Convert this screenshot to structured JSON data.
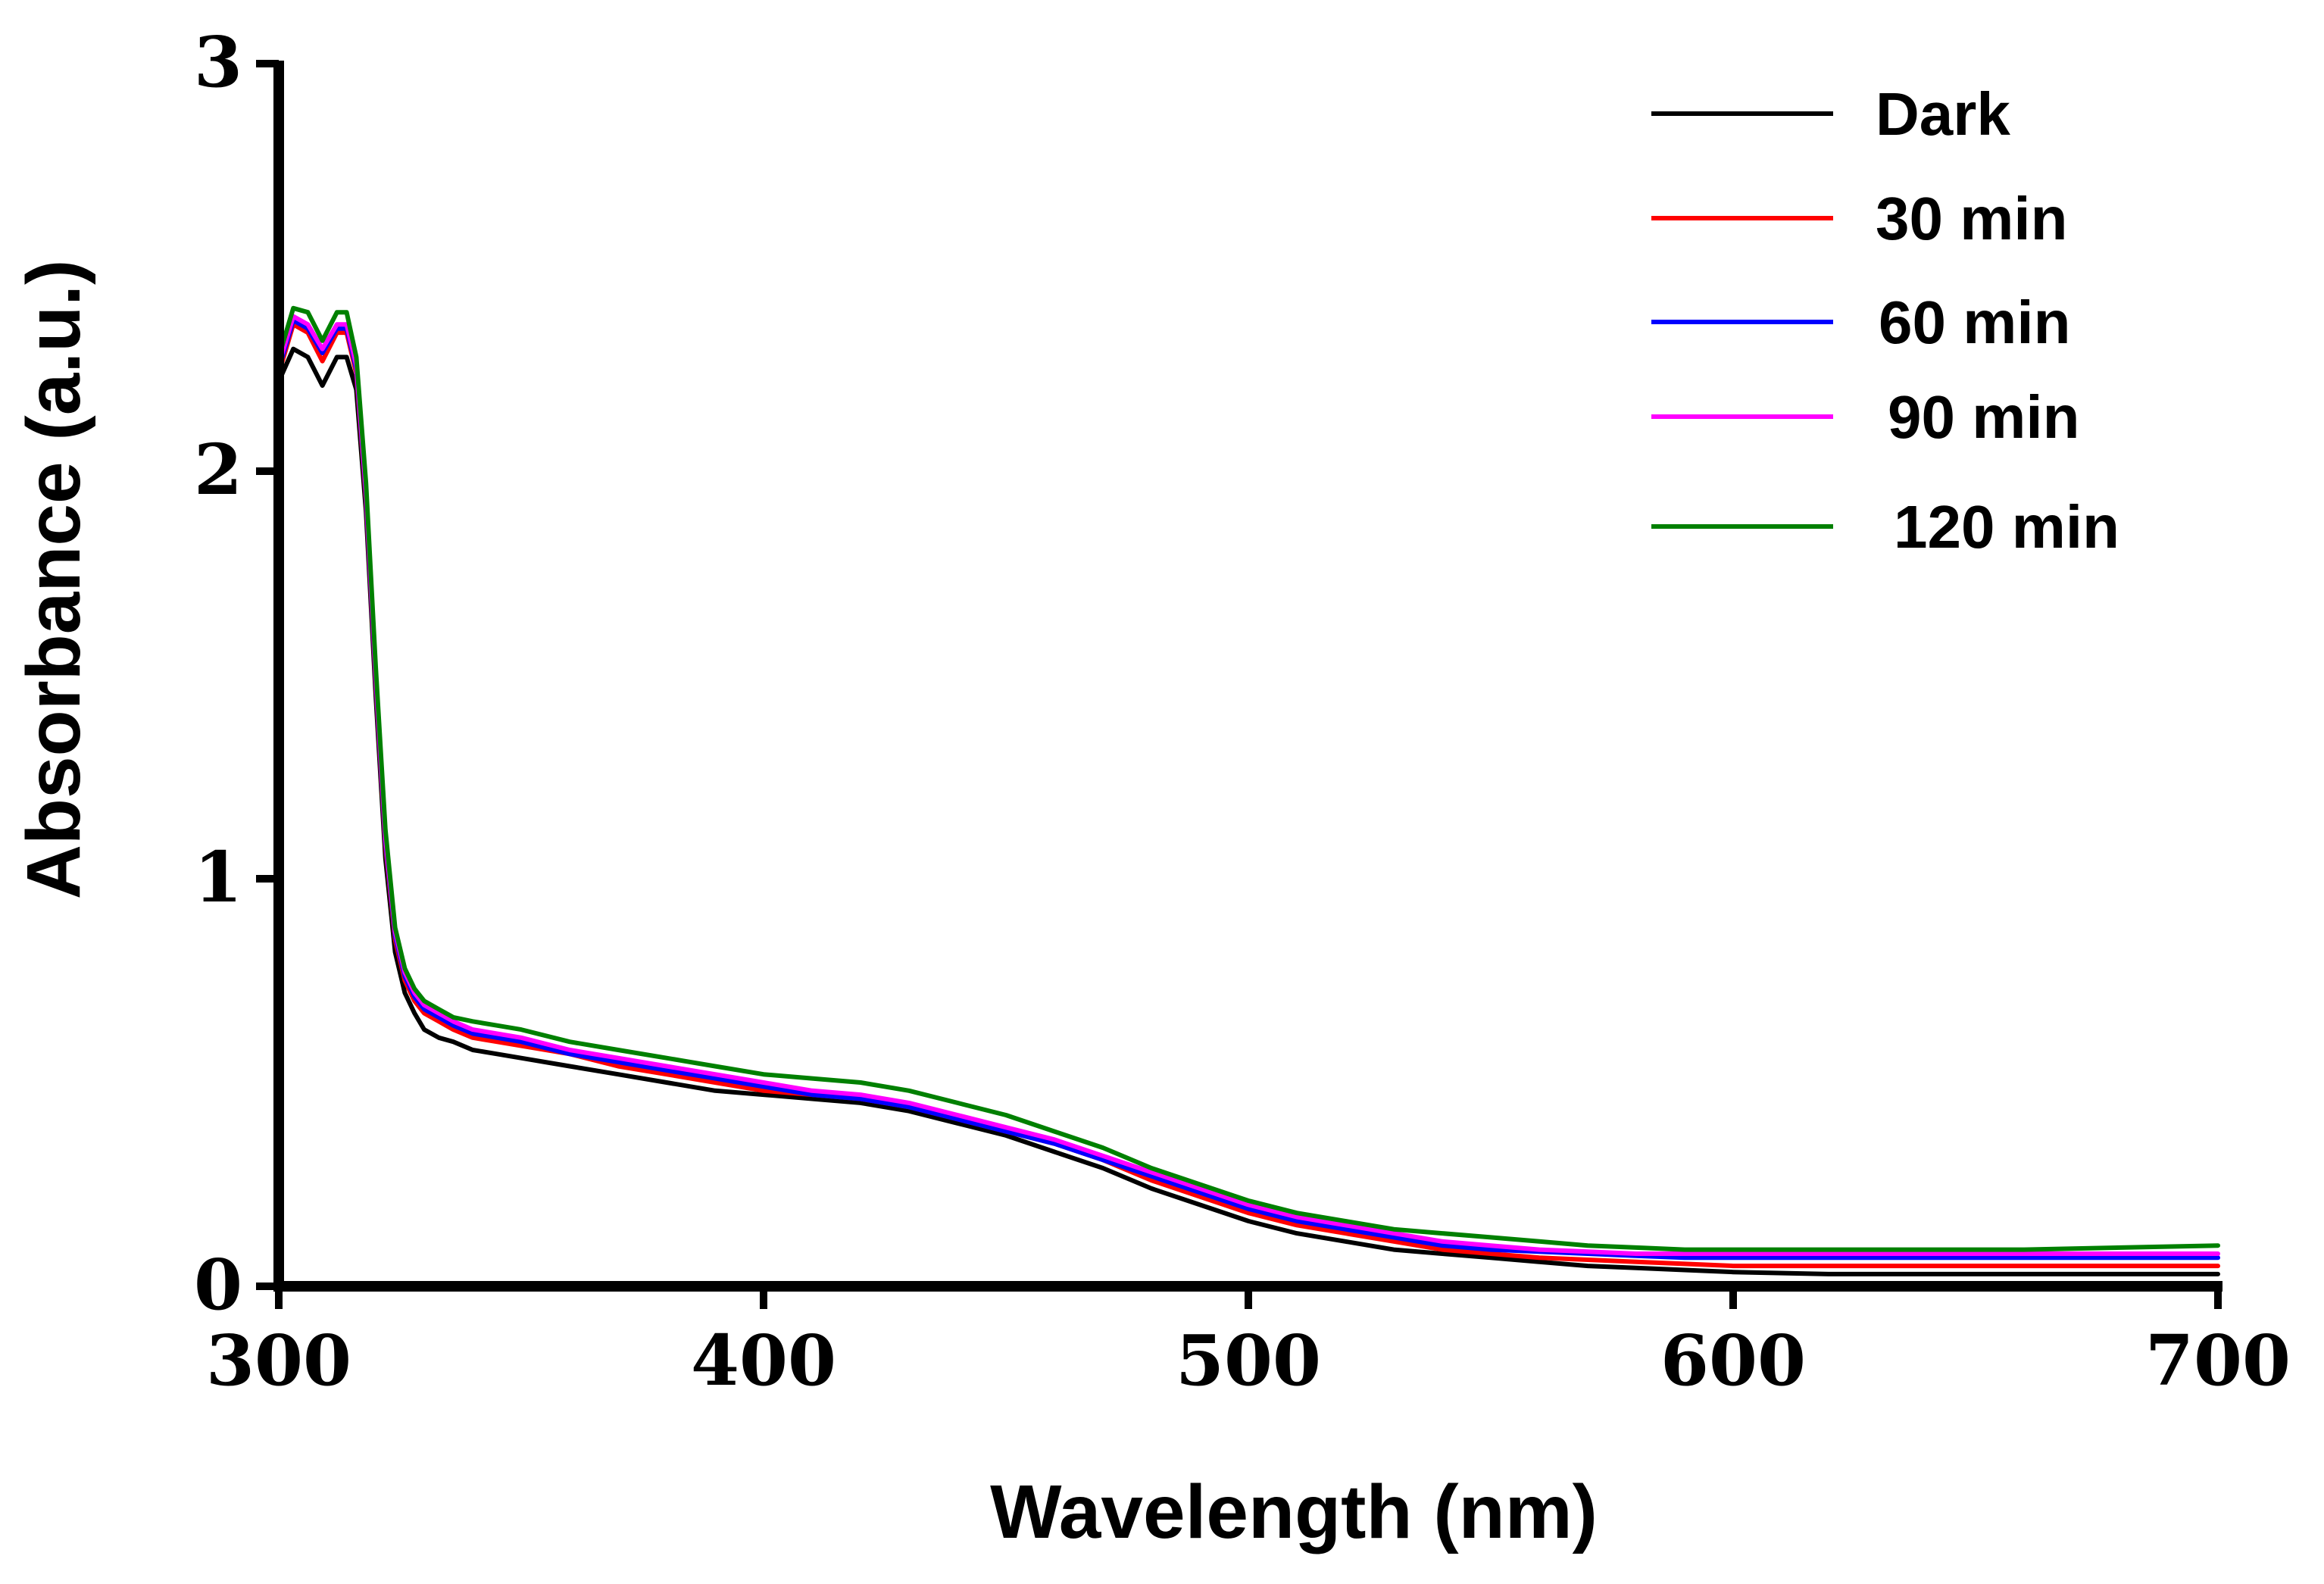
{
  "chart_data": {
    "type": "line",
    "title": "",
    "xlabel": "Wavelength (nm)",
    "ylabel": "Absorbance (a.u.)",
    "xlim": [
      300,
      700
    ],
    "ylim": [
      0,
      3
    ],
    "xticks": [
      300,
      400,
      500,
      600,
      700
    ],
    "yticks": [
      0,
      1,
      2,
      3
    ],
    "grid": false,
    "legend_position": "top-right",
    "x": [
      300,
      303,
      306,
      309,
      312,
      314,
      316,
      318,
      320,
      322,
      324,
      326,
      328,
      330,
      333,
      336,
      340,
      345,
      350,
      360,
      370,
      380,
      390,
      400,
      410,
      420,
      430,
      440,
      450,
      460,
      470,
      480,
      490,
      500,
      510,
      520,
      530,
      540,
      550,
      560,
      570,
      580,
      590,
      600,
      620,
      640,
      660,
      680,
      700
    ],
    "series": [
      {
        "name": "Dark",
        "color": "#000000",
        "values": [
          2.22,
          2.3,
          2.28,
          2.21,
          2.28,
          2.28,
          2.2,
          1.9,
          1.45,
          1.05,
          0.82,
          0.72,
          0.67,
          0.63,
          0.61,
          0.6,
          0.58,
          0.57,
          0.56,
          0.54,
          0.52,
          0.5,
          0.48,
          0.47,
          0.46,
          0.45,
          0.43,
          0.4,
          0.37,
          0.33,
          0.29,
          0.24,
          0.2,
          0.16,
          0.13,
          0.11,
          0.09,
          0.08,
          0.07,
          0.06,
          0.05,
          0.045,
          0.04,
          0.035,
          0.03,
          0.03,
          0.03,
          0.03,
          0.03
        ]
      },
      {
        "name": "30 min",
        "color": "#ff0000",
        "values": [
          2.24,
          2.36,
          2.34,
          2.27,
          2.34,
          2.34,
          2.24,
          1.93,
          1.48,
          1.08,
          0.85,
          0.75,
          0.7,
          0.67,
          0.65,
          0.63,
          0.61,
          0.6,
          0.59,
          0.57,
          0.54,
          0.52,
          0.5,
          0.48,
          0.47,
          0.46,
          0.44,
          0.41,
          0.38,
          0.35,
          0.31,
          0.26,
          0.22,
          0.18,
          0.15,
          0.13,
          0.11,
          0.09,
          0.08,
          0.07,
          0.065,
          0.06,
          0.055,
          0.05,
          0.05,
          0.05,
          0.05,
          0.05,
          0.05
        ]
      },
      {
        "name": "60 min",
        "color": "#0000ff",
        "values": [
          2.25,
          2.37,
          2.35,
          2.29,
          2.35,
          2.35,
          2.25,
          1.94,
          1.49,
          1.09,
          0.86,
          0.76,
          0.71,
          0.68,
          0.66,
          0.64,
          0.62,
          0.61,
          0.6,
          0.57,
          0.55,
          0.53,
          0.51,
          0.49,
          0.47,
          0.46,
          0.44,
          0.41,
          0.38,
          0.35,
          0.31,
          0.27,
          0.23,
          0.19,
          0.16,
          0.14,
          0.12,
          0.1,
          0.09,
          0.085,
          0.08,
          0.075,
          0.07,
          0.07,
          0.07,
          0.07,
          0.07,
          0.07,
          0.07
        ]
      },
      {
        "name": "90 min",
        "color": "#ff00ff",
        "values": [
          2.26,
          2.38,
          2.36,
          2.3,
          2.36,
          2.36,
          2.26,
          1.95,
          1.5,
          1.1,
          0.87,
          0.77,
          0.72,
          0.69,
          0.67,
          0.65,
          0.63,
          0.62,
          0.61,
          0.58,
          0.56,
          0.54,
          0.52,
          0.5,
          0.48,
          0.47,
          0.45,
          0.42,
          0.39,
          0.36,
          0.32,
          0.28,
          0.24,
          0.2,
          0.17,
          0.15,
          0.13,
          0.11,
          0.1,
          0.09,
          0.085,
          0.08,
          0.08,
          0.08,
          0.08,
          0.08,
          0.08,
          0.08,
          0.08
        ]
      },
      {
        "name": "120 min",
        "color": "#008000",
        "values": [
          2.28,
          2.4,
          2.39,
          2.32,
          2.39,
          2.39,
          2.28,
          1.97,
          1.52,
          1.12,
          0.88,
          0.78,
          0.73,
          0.7,
          0.68,
          0.66,
          0.65,
          0.64,
          0.63,
          0.6,
          0.58,
          0.56,
          0.54,
          0.52,
          0.51,
          0.5,
          0.48,
          0.45,
          0.42,
          0.38,
          0.34,
          0.29,
          0.25,
          0.21,
          0.18,
          0.16,
          0.14,
          0.13,
          0.12,
          0.11,
          0.1,
          0.095,
          0.09,
          0.09,
          0.09,
          0.09,
          0.09,
          0.095,
          0.1
        ]
      }
    ]
  }
}
